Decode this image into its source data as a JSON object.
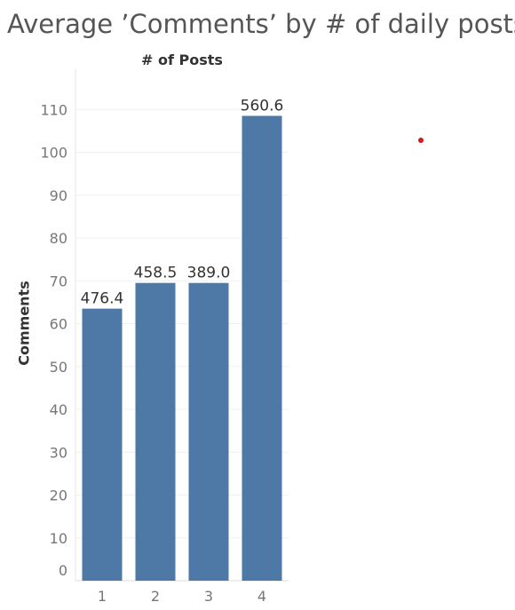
{
  "chart_data": {
    "type": "bar",
    "title": "Average ’Comments’ by # of daily posts",
    "top_axis_label": "# of Posts",
    "ylabel": "Comments",
    "categories": [
      "1",
      "2",
      "3",
      "4"
    ],
    "values": [
      63.5,
      69.5,
      69.5,
      108.5
    ],
    "data_labels": [
      "476.4",
      "458.5",
      "389.0",
      "560.6"
    ],
    "yticks": [
      0,
      10,
      20,
      30,
      40,
      50,
      60,
      70,
      80,
      90,
      100,
      110
    ],
    "ylim": [
      0,
      118
    ],
    "grid": true,
    "bar_color": "#4e79a7"
  },
  "marker": {
    "color": "#d7191c"
  }
}
